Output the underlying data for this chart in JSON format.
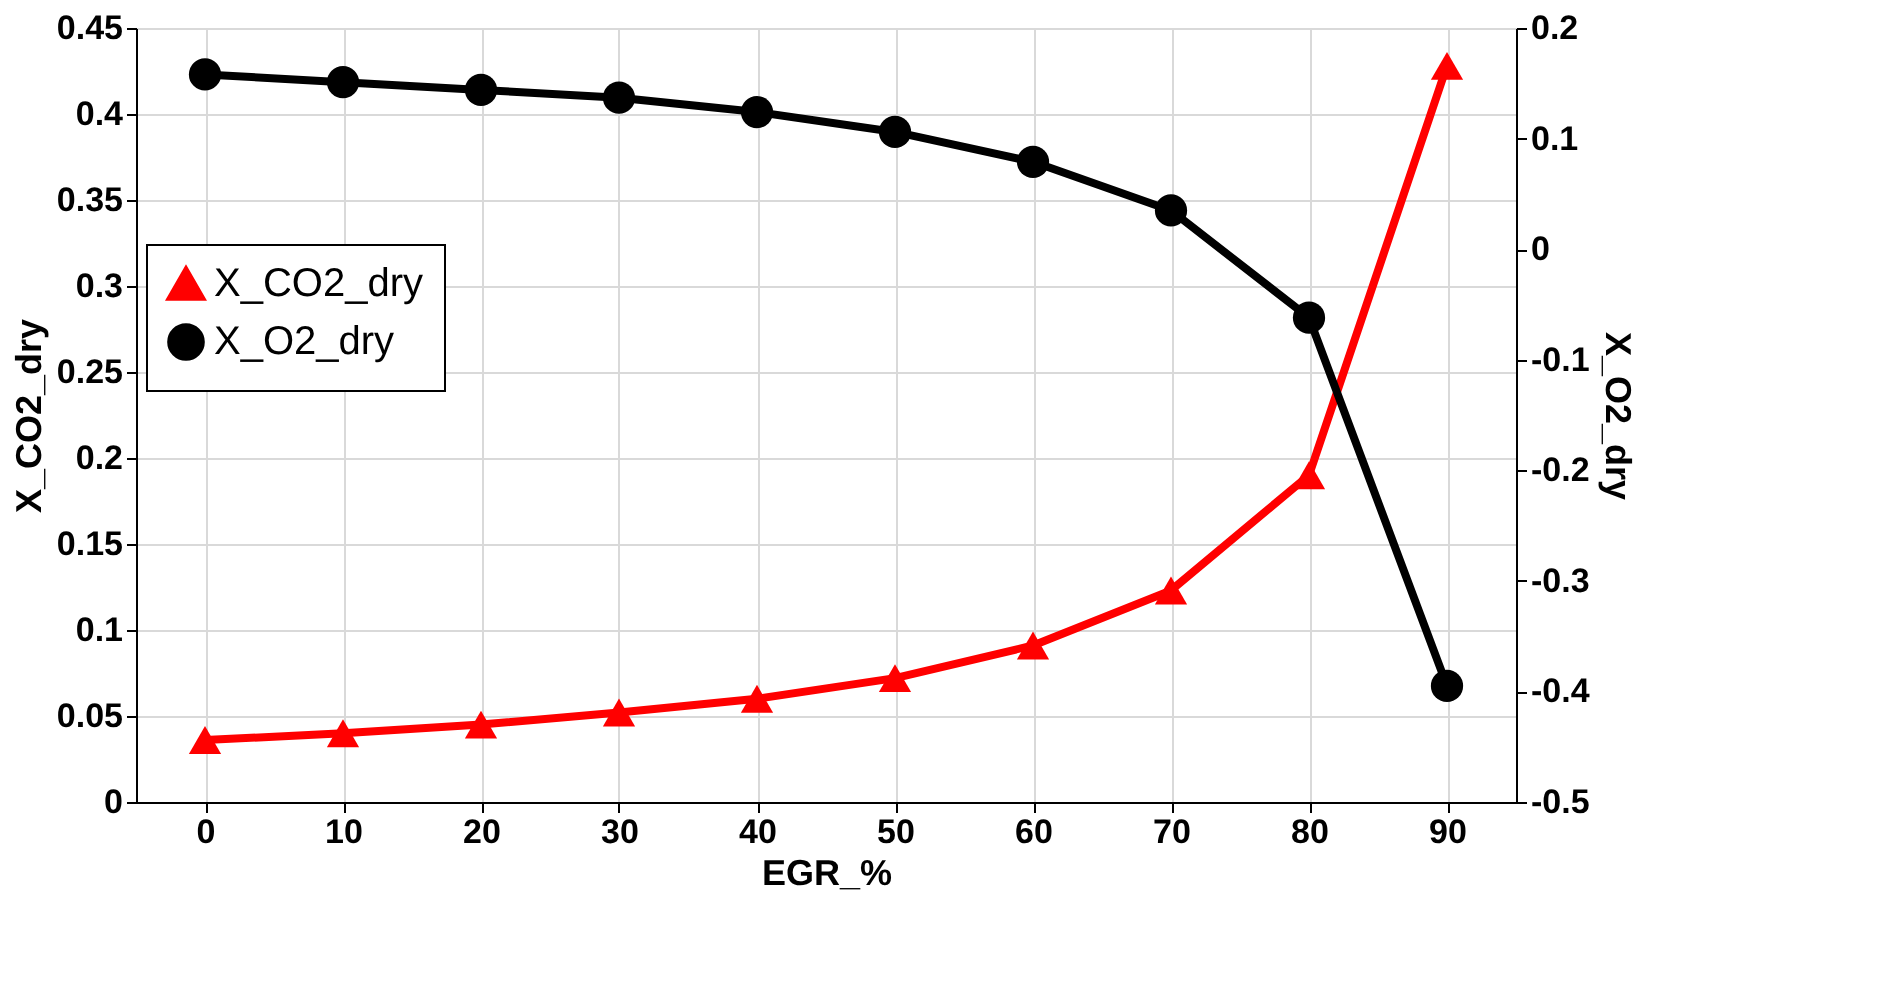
{
  "chart_data": {
    "type": "line",
    "xlabel": "EGR_%",
    "ylabel": "X_CO2_dry",
    "y2label": "X_O2_dry",
    "x": [
      0,
      10,
      20,
      30,
      40,
      50,
      60,
      70,
      80,
      90
    ],
    "xlim": [
      -5,
      95
    ],
    "xticks": [
      0,
      10,
      20,
      30,
      40,
      50,
      60,
      70,
      80,
      90
    ],
    "ylim": [
      0,
      0.45
    ],
    "yticks": [
      0,
      0.05,
      0.1,
      0.15,
      0.2,
      0.25,
      0.3,
      0.35,
      0.4,
      0.45
    ],
    "y2lim": [
      -0.5,
      0.2
    ],
    "y2ticks": [
      -0.5,
      -0.4,
      -0.3,
      -0.2,
      -0.1,
      0,
      0.1,
      0.2
    ],
    "grid": true,
    "legend": "left",
    "line_style": "solid",
    "series": [
      {
        "name": "X_CO2_dry",
        "color": "#ff0000",
        "marker": "triangle",
        "values": [
          0.036,
          0.04,
          0.045,
          0.052,
          0.06,
          0.072,
          0.091,
          0.123,
          0.19,
          0.428
        ]
      },
      {
        "name": "X_O2_dry",
        "color": "#000000",
        "marker": "circle",
        "axis": "y2",
        "values": [
          0.158,
          0.151,
          0.144,
          0.137,
          0.124,
          0.106,
          0.079,
          0.035,
          -0.062,
          -0.395
        ]
      }
    ]
  }
}
